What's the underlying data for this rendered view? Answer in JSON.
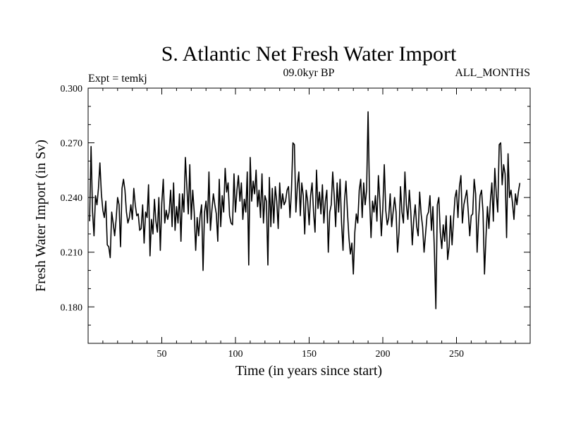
{
  "chart_data": {
    "type": "line",
    "title": "S. Atlantic Net Fresh Water Import",
    "subtitle_left": "Expt = temkj",
    "subtitle_center": "09.0kyr BP",
    "subtitle_right": "ALL_MONTHS",
    "xlabel": "Time (in years since start)",
    "ylabel": "Fresh Water Import (in Sv)",
    "xlim": [
      0,
      300
    ],
    "ylim": [
      0.16,
      0.3
    ],
    "x_ticks": [
      50,
      100,
      150,
      200,
      250
    ],
    "x_tick_labels": [
      "50",
      "100",
      "150",
      "200",
      "250"
    ],
    "y_ticks": [
      0.18,
      0.21,
      0.24,
      0.27,
      0.3
    ],
    "y_tick_labels": [
      "0.180",
      "0.210",
      "0.240",
      "0.270",
      "0.300"
    ],
    "grid": false,
    "series": [
      {
        "name": "Fresh Water Import",
        "color": "#000000",
        "x_start": 1,
        "x_step": 1,
        "values": [
          0.227,
          0.268,
          0.232,
          0.219,
          0.241,
          0.236,
          0.245,
          0.259,
          0.242,
          0.233,
          0.229,
          0.238,
          0.214,
          0.213,
          0.207,
          0.232,
          0.226,
          0.219,
          0.228,
          0.24,
          0.236,
          0.213,
          0.245,
          0.25,
          0.244,
          0.232,
          0.226,
          0.229,
          0.236,
          0.228,
          0.245,
          0.236,
          0.23,
          0.231,
          0.222,
          0.223,
          0.236,
          0.215,
          0.232,
          0.229,
          0.247,
          0.208,
          0.228,
          0.22,
          0.239,
          0.227,
          0.221,
          0.24,
          0.211,
          0.237,
          0.25,
          0.226,
          0.233,
          0.228,
          0.232,
          0.244,
          0.224,
          0.248,
          0.222,
          0.235,
          0.226,
          0.242,
          0.216,
          0.242,
          0.232,
          0.262,
          0.246,
          0.231,
          0.258,
          0.228,
          0.244,
          0.232,
          0.211,
          0.229,
          0.219,
          0.23,
          0.236,
          0.2,
          0.232,
          0.238,
          0.226,
          0.254,
          0.222,
          0.233,
          0.242,
          0.236,
          0.231,
          0.216,
          0.25,
          0.224,
          0.241,
          0.232,
          0.256,
          0.243,
          0.248,
          0.23,
          0.226,
          0.225,
          0.253,
          0.232,
          0.244,
          0.252,
          0.238,
          0.248,
          0.228,
          0.239,
          0.232,
          0.254,
          0.203,
          0.262,
          0.238,
          0.249,
          0.242,
          0.255,
          0.235,
          0.244,
          0.229,
          0.253,
          0.226,
          0.241,
          0.238,
          0.203,
          0.251,
          0.224,
          0.245,
          0.226,
          0.246,
          0.238,
          0.223,
          0.248,
          0.234,
          0.242,
          0.236,
          0.238,
          0.244,
          0.246,
          0.229,
          0.244,
          0.27,
          0.269,
          0.232,
          0.246,
          0.254,
          0.23,
          0.248,
          0.241,
          0.22,
          0.244,
          0.238,
          0.225,
          0.241,
          0.248,
          0.232,
          0.221,
          0.255,
          0.234,
          0.243,
          0.231,
          0.247,
          0.226,
          0.238,
          0.244,
          0.21,
          0.232,
          0.236,
          0.254,
          0.241,
          0.224,
          0.248,
          0.232,
          0.25,
          0.226,
          0.211,
          0.238,
          0.249,
          0.232,
          0.218,
          0.209,
          0.215,
          0.198,
          0.221,
          0.231,
          0.226,
          0.244,
          0.25,
          0.229,
          0.248,
          0.236,
          0.244,
          0.287,
          0.24,
          0.218,
          0.238,
          0.232,
          0.241,
          0.227,
          0.252,
          0.238,
          0.219,
          0.234,
          0.258,
          0.233,
          0.225,
          0.229,
          0.242,
          0.224,
          0.232,
          0.24,
          0.232,
          0.21,
          0.221,
          0.246,
          0.232,
          0.226,
          0.254,
          0.236,
          0.228,
          0.244,
          0.232,
          0.214,
          0.228,
          0.236,
          0.224,
          0.219,
          0.243,
          0.231,
          0.224,
          0.21,
          0.22,
          0.23,
          0.232,
          0.241,
          0.222,
          0.235,
          0.211,
          0.179,
          0.236,
          0.24,
          0.221,
          0.212,
          0.225,
          0.216,
          0.23,
          0.206,
          0.213,
          0.23,
          0.214,
          0.228,
          0.24,
          0.244,
          0.229,
          0.246,
          0.252,
          0.226,
          0.236,
          0.24,
          0.244,
          0.232,
          0.219,
          0.23,
          0.231,
          0.25,
          0.242,
          0.21,
          0.228,
          0.241,
          0.244,
          0.232,
          0.198,
          0.218,
          0.235,
          0.223,
          0.238,
          0.248,
          0.227,
          0.256,
          0.242,
          0.232,
          0.269,
          0.27,
          0.247,
          0.258,
          0.253,
          0.218,
          0.264,
          0.24,
          0.244,
          0.237,
          0.228,
          0.242,
          0.236,
          0.243,
          0.248
        ]
      }
    ]
  }
}
